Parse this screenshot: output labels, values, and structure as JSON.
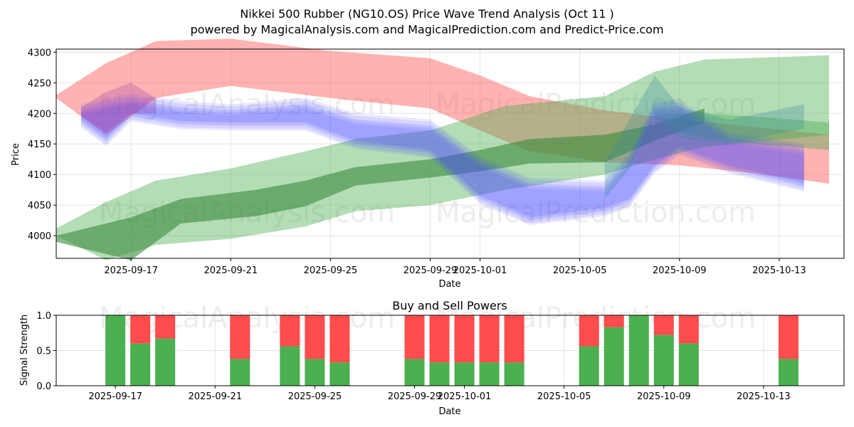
{
  "chart_data": [
    {
      "type": "area",
      "title": "Nikkei 500 Rubber (NG10.OS) Price Wave Trend Analysis (Oct 11 )",
      "subtitle": "powered by MagicalAnalysis.com and MagicalPrediction.com and Predict-Price.com",
      "xlabel": "Date",
      "ylabel": "Price",
      "xlim": [
        "2025-09-14",
        "2025-10-15.6"
      ],
      "ylim": [
        3963,
        4305
      ],
      "yticks": [
        4000,
        4050,
        4100,
        4150,
        4200,
        4250,
        4300
      ],
      "xticks": [
        "2025-09-17",
        "2025-09-21",
        "2025-09-25",
        "2025-09-29",
        "2025-10-01",
        "2025-10-05",
        "2025-10-09",
        "2025-10-13"
      ],
      "grid": true,
      "watermarks": [
        "MagicalAnalysis.com",
        "MagicalPrediction.com",
        "MagicalAnalysis.com",
        "MagicalPrediction.com"
      ],
      "series": [
        {
          "name": "red band",
          "color": "#ff5555",
          "opacity": 0.45,
          "x": [
            "2025-09-14",
            "2025-09-16",
            "2025-09-18",
            "2025-09-21",
            "2025-09-25",
            "2025-09-29",
            "2025-10-01",
            "2025-10-03",
            "2025-10-06",
            "2025-10-09",
            "2025-10-12",
            "2025-10-15"
          ],
          "upper": [
            4230,
            4282,
            4318,
            4322,
            4302,
            4290,
            4262,
            4228,
            4205,
            4190,
            4178,
            4165
          ],
          "lower": [
            4225,
            4165,
            4225,
            4245,
            4225,
            4208,
            4172,
            4138,
            4120,
            4115,
            4102,
            4085
          ]
        },
        {
          "name": "light green band",
          "color": "#4caf50",
          "opacity": 0.42,
          "x": [
            "2025-09-14",
            "2025-09-16",
            "2025-09-18",
            "2025-09-21",
            "2025-09-24",
            "2025-09-26",
            "2025-09-29",
            "2025-10-02",
            "2025-10-06",
            "2025-10-08",
            "2025-10-10",
            "2025-10-15"
          ],
          "upper": [
            4012,
            4055,
            4090,
            4110,
            4138,
            4158,
            4172,
            4212,
            4228,
            4268,
            4288,
            4295
          ],
          "lower": [
            4000,
            3960,
            3985,
            3995,
            4015,
            4040,
            4050,
            4075,
            4100,
            4125,
            4145,
            4165
          ]
        },
        {
          "name": "dark green band",
          "color": "#3a8a3a",
          "opacity": 0.6,
          "x": [
            "2025-09-14",
            "2025-09-17",
            "2025-09-19",
            "2025-09-22",
            "2025-09-24",
            "2025-09-26",
            "2025-09-29",
            "2025-10-01",
            "2025-10-03",
            "2025-10-06",
            "2025-10-08",
            "2025-10-10"
          ],
          "upper": [
            4000,
            4030,
            4060,
            4075,
            4090,
            4112,
            4125,
            4140,
            4158,
            4165,
            4182,
            4208
          ],
          "lower": [
            3990,
            3960,
            4020,
            4032,
            4048,
            4082,
            4095,
            4105,
            4118,
            4120,
            4155,
            4185
          ]
        },
        {
          "name": "late green band",
          "color": "#4caf50",
          "opacity": 0.42,
          "x": [
            "2025-10-08",
            "2025-10-10",
            "2025-10-12",
            "2025-10-15"
          ],
          "upper": [
            4198,
            4200,
            4195,
            4185
          ],
          "lower": [
            4180,
            4160,
            4150,
            4140
          ]
        },
        {
          "name": "blue bands",
          "color": "#4a4aff",
          "opacity": 0.18,
          "x": [
            "2025-09-15",
            "2025-09-16",
            "2025-09-17",
            "2025-09-19",
            "2025-09-21",
            "2025-09-24",
            "2025-09-26",
            "2025-09-29",
            "2025-10-01",
            "2025-10-03",
            "2025-10-06",
            "2025-10-07",
            "2025-10-08",
            "2025-10-09",
            "2025-10-11",
            "2025-10-14"
          ],
          "upper": [
            4205,
            4215,
            4222,
            4210,
            4205,
            4215,
            4190,
            4180,
            4120,
            4085,
            4080,
            4125,
            4210,
            4212,
            4160,
            4140
          ],
          "lower": [
            4185,
            4155,
            4195,
            4182,
            4180,
            4180,
            4150,
            4135,
            4060,
            4025,
            4040,
            4055,
            4110,
            4140,
            4110,
            4080
          ]
        },
        {
          "name": "teal band",
          "color": "#3a8a9a",
          "opacity": 0.3,
          "x": [
            "2025-10-06",
            "2025-10-07",
            "2025-10-08",
            "2025-10-09",
            "2025-10-11",
            "2025-10-14"
          ],
          "upper": [
            4120,
            4190,
            4262,
            4210,
            4190,
            4215
          ],
          "lower": [
            4060,
            4110,
            4200,
            4160,
            4150,
            4175
          ]
        },
        {
          "name": "purple overlap",
          "color": "#a040b0",
          "opacity": 0.28,
          "x": [
            "2025-09-15",
            "2025-09-16",
            "2025-09-17",
            "2025-09-18"
          ],
          "upper": [
            4210,
            4235,
            4250,
            4225
          ],
          "lower": [
            4195,
            4170,
            4200,
            4200
          ]
        }
      ]
    },
    {
      "type": "bar",
      "title": "Buy and Sell Powers",
      "xlabel": "Date",
      "ylabel": "Signal Strength",
      "ylim": [
        0,
        1
      ],
      "yticks": [
        "0.0",
        "0.5",
        "1.0"
      ],
      "xticks": [
        "2025-09-17",
        "2025-09-21",
        "2025-09-25",
        "2025-09-29",
        "2025-10-01",
        "2025-10-05",
        "2025-10-09",
        "2025-10-13"
      ],
      "colors": {
        "buy": "#4caf50",
        "sell": "#ff4c4c"
      },
      "categories": [
        "2025-09-17",
        "2025-09-18",
        "2025-09-19",
        "2025-09-22",
        "2025-09-24",
        "2025-09-25",
        "2025-09-26",
        "2025-09-29",
        "2025-09-30",
        "2025-10-01",
        "2025-10-02",
        "2025-10-03",
        "2025-10-06",
        "2025-10-07",
        "2025-10-08",
        "2025-10-09",
        "2025-10-10",
        "2025-10-14"
      ],
      "series": [
        {
          "name": "Buy",
          "values": [
            1.0,
            0.6,
            0.67,
            0.38,
            0.56,
            0.38,
            0.33,
            0.38,
            0.33,
            0.33,
            0.33,
            0.33,
            0.56,
            0.83,
            1.0,
            0.72,
            0.6,
            0.38
          ]
        },
        {
          "name": "Sell",
          "values": [
            0.0,
            0.4,
            0.33,
            0.62,
            0.44,
            0.62,
            0.67,
            0.62,
            0.67,
            0.67,
            0.67,
            0.67,
            0.44,
            0.17,
            0.0,
            0.28,
            0.4,
            0.62
          ]
        }
      ]
    }
  ]
}
